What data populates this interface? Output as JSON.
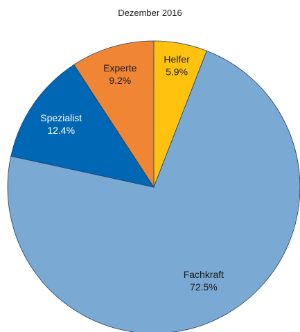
{
  "chart_data": {
    "type": "pie",
    "title": "Dezember 2016",
    "slices": [
      {
        "name": "Helfer",
        "percent_label": "5.9%",
        "value": 5.9,
        "color": "#ffc20e",
        "text_color": "#1a1a1a"
      },
      {
        "name": "Fachkraft",
        "percent_label": "72.5%",
        "value": 72.5,
        "color": "#7aa9d4",
        "text_color": "#1a1a1a"
      },
      {
        "name": "Spezialist",
        "percent_label": "12.4%",
        "value": 12.4,
        "color": "#0067b5",
        "text_color": "#ffffff"
      },
      {
        "name": "Experte",
        "percent_label": "9.2%",
        "value": 9.2,
        "color": "#f08534",
        "text_color": "#1a1a1a"
      }
    ],
    "start": "12 o'clock",
    "direction": "clockwise",
    "legend": "none"
  }
}
